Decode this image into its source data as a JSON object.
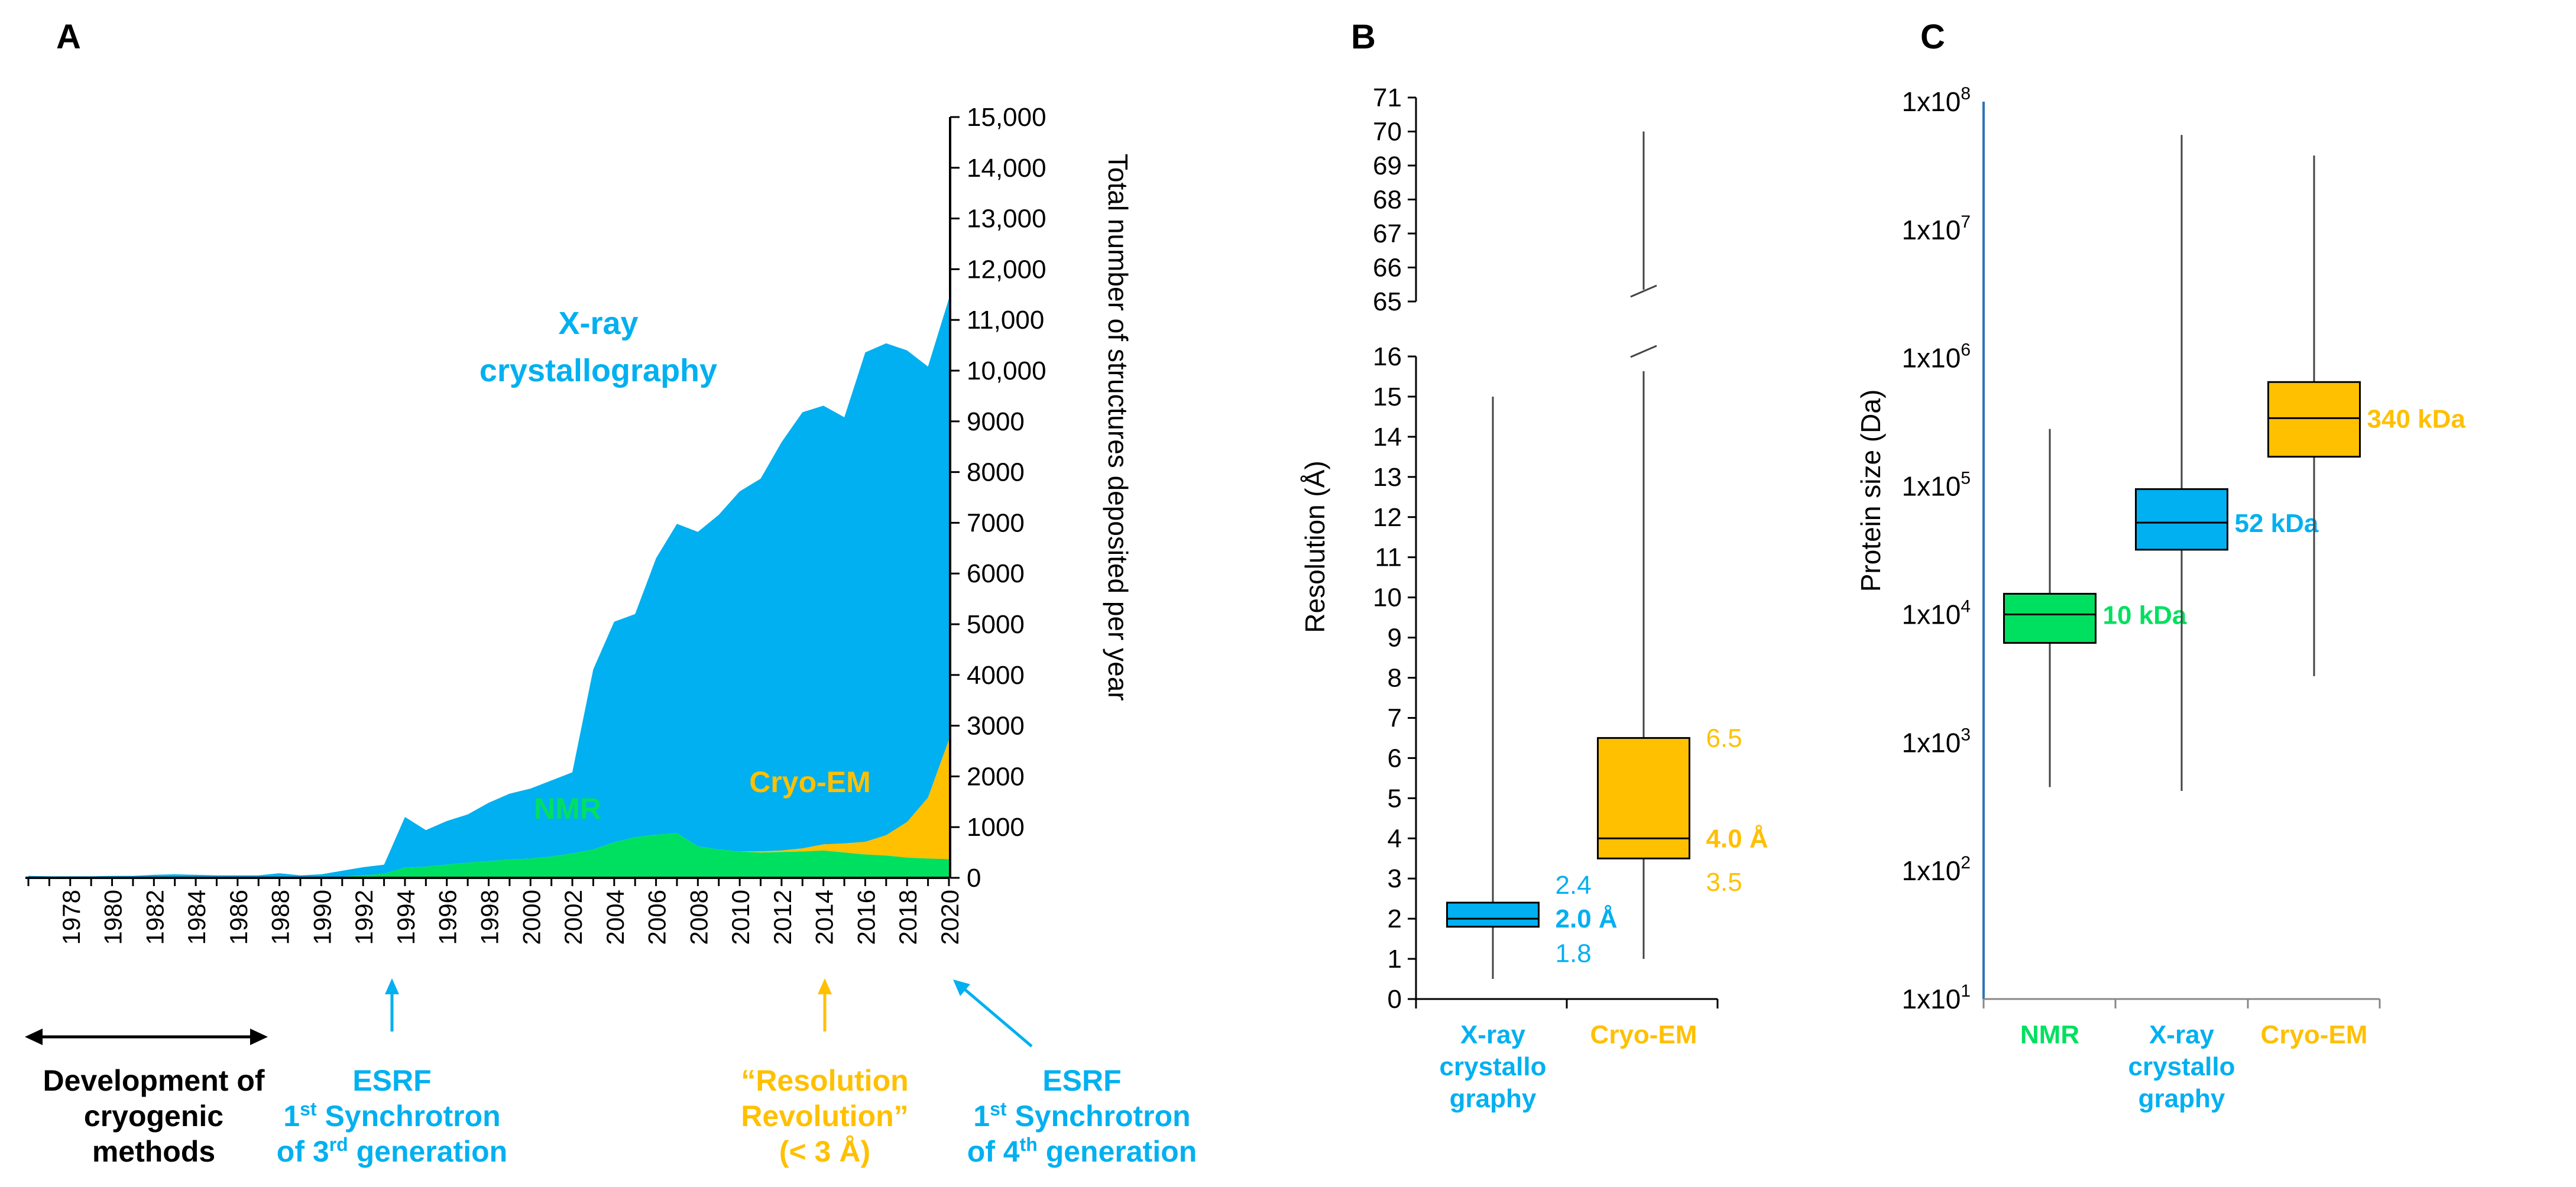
{
  "colors": {
    "xray": "#00b0f0",
    "nmr": "#00e060",
    "cryo": "#ffc000",
    "axis": "#000000",
    "c_axis": "#2e75b6",
    "whisker": "#444444",
    "black": "#000000"
  },
  "panels": {
    "a": "A",
    "b": "B",
    "c": "C"
  },
  "chart_data": [
    {
      "type": "area",
      "panel": "A",
      "ylabel": "Total number of structures deposited per year",
      "ylim": [
        0,
        15000
      ],
      "y_ticks": [
        "0",
        "1000",
        "2000",
        "3000",
        "4000",
        "5000",
        "6000",
        "7000",
        "8000",
        "9000",
        "10,000",
        "11,000",
        "12,000",
        "13,000",
        "14,000",
        "15,000"
      ],
      "x_ticks": [
        "1978",
        "1980",
        "1982",
        "1984",
        "1986",
        "1988",
        "1990",
        "1992",
        "1994",
        "1996",
        "1998",
        "2000",
        "2002",
        "2004",
        "2006",
        "2008",
        "2010",
        "2012",
        "2014",
        "2016",
        "2018",
        "2020"
      ],
      "x": [
        1976,
        1977,
        1978,
        1979,
        1980,
        1981,
        1982,
        1983,
        1984,
        1985,
        1986,
        1987,
        1988,
        1989,
        1990,
        1991,
        1992,
        1993,
        1994,
        1995,
        1996,
        1997,
        1998,
        1999,
        2000,
        2001,
        2002,
        2003,
        2004,
        2005,
        2006,
        2007,
        2008,
        2009,
        2010,
        2011,
        2012,
        2013,
        2014,
        2015,
        2016,
        2017,
        2018,
        2019,
        2020
      ],
      "series": [
        {
          "name": "NMR",
          "values": [
            0,
            0,
            0,
            0,
            0,
            0,
            0,
            0,
            0,
            0,
            0,
            0,
            0,
            0,
            10,
            20,
            50,
            80,
            200,
            220,
            260,
            300,
            330,
            360,
            380,
            420,
            480,
            560,
            700,
            800,
            850,
            880,
            620,
            560,
            520,
            500,
            510,
            520,
            540,
            500,
            460,
            440,
            400,
            380,
            370
          ]
        },
        {
          "name": "X-ray crystallography",
          "values": [
            40,
            30,
            30,
            30,
            40,
            40,
            60,
            70,
            60,
            50,
            50,
            50,
            90,
            50,
            60,
            120,
            160,
            180,
            1000,
            720,
            860,
            950,
            1150,
            1300,
            1380,
            1500,
            1600,
            3550,
            4350,
            4400,
            5450,
            6100,
            6200,
            6600,
            7100,
            7350,
            8050,
            8600,
            8650,
            8400,
            9650,
            9700,
            9300,
            8500,
            8700
          ]
        },
        {
          "name": "Cryo-EM",
          "values": [
            0,
            0,
            0,
            0,
            0,
            0,
            0,
            0,
            0,
            0,
            0,
            0,
            0,
            0,
            0,
            0,
            0,
            0,
            0,
            0,
            0,
            0,
            0,
            0,
            0,
            0,
            0,
            0,
            0,
            0,
            0,
            0,
            0,
            0,
            0,
            20,
            30,
            60,
            120,
            180,
            250,
            400,
            700,
            1200,
            2350
          ]
        }
      ],
      "annotations": {
        "xray_line1": "X-ray",
        "xray_line2": "crystallography",
        "nmr": "NMR",
        "cryo": "Cryo-EM",
        "dev_line1": "Development of",
        "dev_line2": "cryogenic",
        "dev_line3": "methods",
        "esrf1_line1": "ESRF",
        "esrf1_line2a": "1",
        "esrf1_line2sup": "st",
        "esrf1_line2b": " Synchrotron",
        "esrf1_line3a": "of 3",
        "esrf1_line3sup": "rd",
        "esrf1_line3b": " generation",
        "res_line1": "“Resolution",
        "res_line2": "Revolution”",
        "res_line3": "(< 3 Å)",
        "esrf2_line1": "ESRF",
        "esrf2_line2a": "1",
        "esrf2_line2sup": "st",
        "esrf2_line2b": " Synchrotron",
        "esrf2_line3a": "of 4",
        "esrf2_line3sup": "th",
        "esrf2_line3b": " generation"
      }
    },
    {
      "type": "box",
      "panel": "B",
      "ylabel": "Resolution (Å)",
      "y_ticks_lower": [
        "0",
        "1",
        "2",
        "3",
        "4",
        "5",
        "6",
        "7",
        "8",
        "9",
        "10",
        "11",
        "12",
        "13",
        "14",
        "15",
        "16"
      ],
      "y_ticks_upper": [
        "65",
        "66",
        "67",
        "68",
        "69",
        "70",
        "71"
      ],
      "categories": [
        {
          "line1": "X-ray",
          "line2": "crystallo",
          "line3": "graphy"
        },
        {
          "line1": "Cryo-EM",
          "line2": "",
          "line3": ""
        }
      ],
      "boxes": [
        {
          "name": "X-ray crystallography",
          "min": 0.5,
          "q1": 1.8,
          "median": 2.0,
          "q3": 2.4,
          "max": 15,
          "label_q3": "2.4",
          "label_median": "2.0 Å",
          "label_q1": "1.8"
        },
        {
          "name": "Cryo-EM",
          "min": 1.0,
          "q1": 3.5,
          "median": 4.0,
          "q3": 6.5,
          "max": 70,
          "label_q3": "6.5",
          "label_median": "4.0 Å",
          "label_q1": "3.5"
        }
      ]
    },
    {
      "type": "box",
      "panel": "C",
      "ylabel": "Protein size (Da)",
      "yscale": "log",
      "ylim": [
        10,
        100000000
      ],
      "y_ticks": [
        {
          "base": "1x10",
          "exp": "1"
        },
        {
          "base": "1x10",
          "exp": "2"
        },
        {
          "base": "1x10",
          "exp": "3"
        },
        {
          "base": "1x10",
          "exp": "4"
        },
        {
          "base": "1x10",
          "exp": "5"
        },
        {
          "base": "1x10",
          "exp": "6"
        },
        {
          "base": "1x10",
          "exp": "7"
        },
        {
          "base": "1x10",
          "exp": "8"
        }
      ],
      "categories": [
        {
          "line1": "NMR",
          "line2": "",
          "line3": ""
        },
        {
          "line1": "X-ray",
          "line2": "crystallo",
          "line3": "graphy"
        },
        {
          "line1": "Cryo-EM",
          "line2": "",
          "line3": ""
        }
      ],
      "boxes": [
        {
          "name": "NMR",
          "min": 450,
          "q1": 6000,
          "median": 10000,
          "q3": 14500,
          "max": 280000,
          "label": "10 kDa"
        },
        {
          "name": "X-ray crystallography",
          "min": 420,
          "q1": 32000,
          "median": 52000,
          "q3": 95000,
          "max": 55000000,
          "label": "52 kDa"
        },
        {
          "name": "Cryo-EM",
          "min": 3300,
          "q1": 170000,
          "median": 340000,
          "q3": 650000,
          "max": 38000000,
          "label": "340 kDa"
        }
      ]
    }
  ]
}
